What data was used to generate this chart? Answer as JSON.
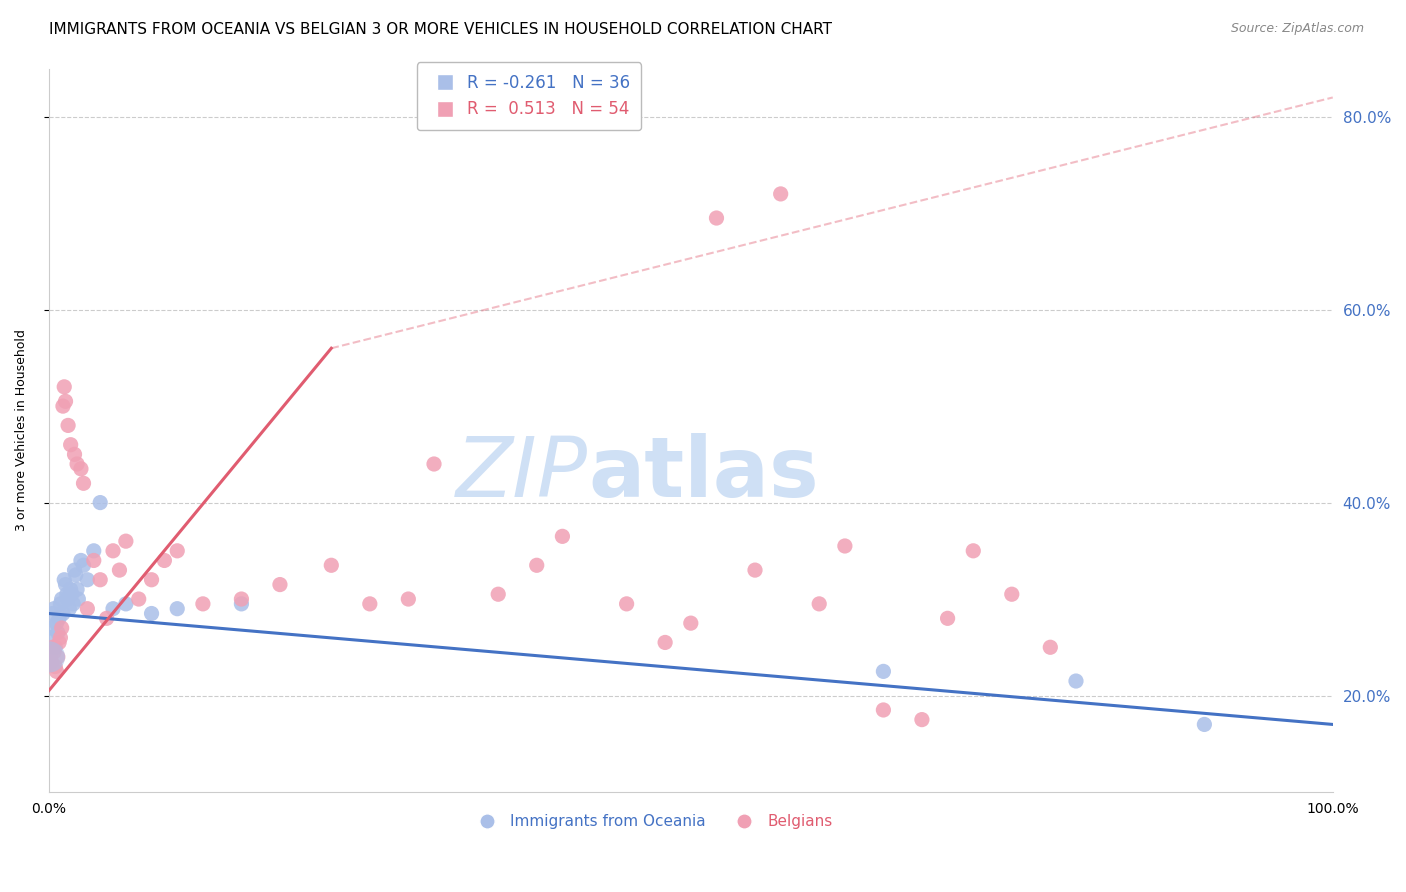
{
  "title": "IMMIGRANTS FROM OCEANIA VS BELGIAN 3 OR MORE VEHICLES IN HOUSEHOLD CORRELATION CHART",
  "source": "Source: ZipAtlas.com",
  "ylabel_left": "3 or more Vehicles in Household",
  "blue_scatter_x": [
    0.1,
    0.2,
    0.3,
    0.4,
    0.5,
    0.6,
    0.7,
    0.8,
    0.9,
    1.0,
    1.1,
    1.2,
    1.3,
    1.4,
    1.5,
    1.6,
    1.7,
    1.8,
    1.9,
    2.0,
    2.1,
    2.2,
    2.3,
    2.5,
    2.7,
    3.0,
    3.5,
    4.0,
    5.0,
    6.0,
    8.0,
    10.0,
    15.0,
    65.0,
    80.0,
    90.0
  ],
  "blue_scatter_y": [
    26.0,
    27.0,
    28.5,
    29.0,
    25.0,
    27.5,
    26.5,
    28.0,
    29.5,
    30.0,
    28.5,
    32.0,
    31.5,
    30.5,
    30.0,
    29.0,
    31.0,
    30.5,
    29.5,
    33.0,
    32.5,
    31.0,
    30.0,
    34.0,
    33.5,
    32.0,
    35.0,
    40.0,
    29.0,
    29.5,
    28.5,
    29.0,
    29.5,
    22.5,
    21.5,
    17.0
  ],
  "blue_scatter_size": 120,
  "pink_scatter_x": [
    0.1,
    0.2,
    0.3,
    0.4,
    0.5,
    0.6,
    0.7,
    0.8,
    0.9,
    1.0,
    1.1,
    1.2,
    1.3,
    1.5,
    1.7,
    2.0,
    2.2,
    2.5,
    2.7,
    3.0,
    3.5,
    4.0,
    4.5,
    5.0,
    5.5,
    6.0,
    7.0,
    8.0,
    9.0,
    10.0,
    12.0,
    15.0,
    18.0,
    22.0,
    25.0,
    28.0,
    30.0,
    35.0,
    38.0,
    40.0,
    45.0,
    48.0,
    50.0,
    52.0,
    55.0,
    57.0,
    60.0,
    62.0,
    65.0,
    68.0,
    70.0,
    72.0,
    75.0,
    78.0
  ],
  "pink_scatter_y": [
    24.0,
    23.5,
    25.0,
    24.5,
    23.0,
    22.5,
    24.0,
    25.5,
    26.0,
    27.0,
    50.0,
    52.0,
    50.5,
    48.0,
    46.0,
    45.0,
    44.0,
    43.5,
    42.0,
    29.0,
    34.0,
    32.0,
    28.0,
    35.0,
    33.0,
    36.0,
    30.0,
    32.0,
    34.0,
    35.0,
    29.5,
    30.0,
    31.5,
    33.5,
    29.5,
    30.0,
    44.0,
    30.5,
    33.5,
    36.5,
    29.5,
    25.5,
    27.5,
    69.5,
    33.0,
    72.0,
    29.5,
    35.5,
    18.5,
    17.5,
    28.0,
    35.0,
    30.5,
    25.0
  ],
  "pink_scatter_size": 120,
  "blue_large_dot_x": 0.05,
  "blue_large_dot_y": 24.0,
  "blue_large_dot_size": 500,
  "blue_line_x0": 0,
  "blue_line_x1": 100,
  "blue_line_y0": 28.5,
  "blue_line_y1": 17.0,
  "pink_line_x0": 0,
  "pink_line_x1": 22,
  "pink_line_y0": 20.5,
  "pink_line_y1": 56.0,
  "pink_dashed_x0": 22,
  "pink_dashed_x1": 100,
  "pink_dashed_y0": 56.0,
  "pink_dashed_y1": 82.0,
  "xlim": [
    0,
    100
  ],
  "ylim": [
    10,
    85
  ],
  "y_ticks": [
    20,
    40,
    60,
    80
  ],
  "background_color": "#ffffff",
  "grid_color": "#cccccc",
  "blue_color": "#4472c4",
  "pink_color": "#e05c70",
  "blue_scatter_color": "#aabfe8",
  "pink_scatter_color": "#f0a0b4",
  "title_fontsize": 11,
  "axis_label_fontsize": 9,
  "tick_fontsize": 10,
  "source_fontsize": 9,
  "right_tick_color": "#4472c4",
  "watermark_zip": "ZIP",
  "watermark_atlas": "atlas",
  "watermark_color": "#cfe0f5",
  "watermark_fontsize": 60,
  "legend1_label1": "R = -0.261   N = 36",
  "legend1_label2": "R =  0.513   N = 54",
  "legend2_label1": "Immigrants from Oceania",
  "legend2_label2": "Belgians"
}
